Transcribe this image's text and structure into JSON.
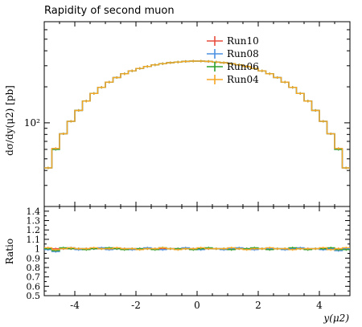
{
  "chart_data": [
    {
      "type": "line",
      "title": "Rapidity of second muon",
      "ylabel": "dσ/dy(μ2) [pb]",
      "yscale": "log",
      "ylim": [
        20,
        700
      ],
      "y_tick_labels": [
        "10²"
      ],
      "xlim": [
        -5,
        5
      ],
      "x_tick_labels": [
        "-4",
        "-2",
        "0",
        "2",
        "4"
      ],
      "legend": {
        "position": "top-center",
        "entries": [
          "Run10",
          "Run08",
          "Run06",
          "Run04"
        ]
      },
      "bin_edges": [
        -5.0,
        -4.75,
        -4.5,
        -4.25,
        -4.0,
        -3.75,
        -3.5,
        -3.25,
        -3.0,
        -2.75,
        -2.5,
        -2.25,
        -2.0,
        -1.75,
        -1.5,
        -1.25,
        -1.0,
        -0.75,
        -0.5,
        -0.25,
        0.0,
        0.25,
        0.5,
        0.75,
        1.0,
        1.25,
        1.5,
        1.75,
        2.0,
        2.25,
        2.5,
        2.75,
        3.0,
        3.25,
        3.5,
        3.75,
        4.0,
        4.25,
        4.5,
        4.75,
        5.0
      ],
      "series": [
        {
          "name": "Run10",
          "color": "#e74c3c",
          "values": [
            42,
            61,
            81,
            103,
            127,
            152,
            176,
            198,
            219,
            239,
            257,
            272,
            285,
            296,
            305,
            312,
            318,
            322,
            326,
            328,
            328,
            326,
            322,
            318,
            312,
            305,
            296,
            285,
            272,
            257,
            239,
            219,
            198,
            176,
            152,
            127,
            103,
            81,
            61,
            42
          ]
        },
        {
          "name": "Run08",
          "color": "#4a90e2",
          "values": [
            42,
            60,
            81,
            103,
            127,
            152,
            176,
            198,
            219,
            239,
            257,
            272,
            285,
            296,
            305,
            312,
            318,
            322,
            326,
            328,
            328,
            326,
            322,
            318,
            312,
            305,
            296,
            285,
            272,
            257,
            239,
            219,
            198,
            176,
            152,
            127,
            103,
            81,
            60,
            42
          ]
        },
        {
          "name": "Run06",
          "color": "#2ca02c",
          "values": [
            42,
            60,
            81,
            103,
            127,
            152,
            176,
            198,
            219,
            239,
            257,
            272,
            285,
            296,
            305,
            312,
            318,
            322,
            326,
            328,
            328,
            326,
            322,
            318,
            312,
            305,
            296,
            285,
            272,
            257,
            239,
            219,
            198,
            176,
            152,
            127,
            103,
            81,
            60,
            42
          ]
        },
        {
          "name": "Run04",
          "color": "#f5a623",
          "values": [
            42,
            61,
            81,
            103,
            127,
            152,
            176,
            198,
            219,
            239,
            257,
            272,
            285,
            296,
            305,
            312,
            318,
            322,
            326,
            328,
            328,
            326,
            322,
            318,
            312,
            305,
            296,
            285,
            272,
            257,
            239,
            219,
            198,
            176,
            152,
            127,
            103,
            81,
            61,
            42
          ]
        }
      ]
    },
    {
      "type": "line",
      "ylabel": "Ratio",
      "xlabel": "y(μ2)",
      "ylim": [
        0.5,
        1.45
      ],
      "y_tick_labels": [
        "0.5",
        "0.6",
        "0.7",
        "0.8",
        "0.9",
        "1",
        "1.1",
        "1.2",
        "1.3",
        "1.4"
      ],
      "xlim": [
        -5,
        5
      ],
      "x_tick_labels": [
        "-4",
        "-2",
        "0",
        "2",
        "4"
      ],
      "series": [
        {
          "name": "Run10",
          "color": "#e74c3c",
          "values": [
            1,
            1,
            1,
            1,
            1,
            1,
            1,
            1,
            1,
            1,
            1,
            1,
            1,
            1,
            1,
            1,
            1,
            1,
            1,
            1,
            1,
            1,
            1,
            1,
            1,
            1,
            1,
            1,
            1,
            1,
            1,
            1,
            1,
            1,
            1,
            1,
            1,
            1,
            1,
            1
          ]
        },
        {
          "name": "Run08",
          "color": "#4a90e2",
          "values": [
            0.99,
            0.97,
            1.0,
            1.01,
            0.99,
            1.0,
            1.0,
            1.01,
            0.99,
            1.0,
            1.0,
            0.99,
            1.0,
            1.01,
            1.0,
            0.99,
            1.0,
            1.0,
            1.01,
            1.0,
            0.99,
            1.0,
            1.0,
            0.99,
            1.0,
            1.01,
            1.0,
            0.99,
            1.0,
            1.0,
            1.0,
            0.99,
            1.0,
            1.01,
            1.0,
            1.0,
            0.99,
            1.0,
            0.98,
            1.0
          ]
        },
        {
          "name": "Run06",
          "color": "#2ca02c",
          "values": [
            1.0,
            0.98,
            1.01,
            1.0,
            1.0,
            0.99,
            1.0,
            1.0,
            1.01,
            1.0,
            0.99,
            1.0,
            1.0,
            1.0,
            0.99,
            1.01,
            1.0,
            1.0,
            1.0,
            0.99,
            1.0,
            1.01,
            1.0,
            1.0,
            0.99,
            1.0,
            1.0,
            1.01,
            1.0,
            0.99,
            1.0,
            1.0,
            1.01,
            1.0,
            0.99,
            1.0,
            1.0,
            1.01,
            0.99,
            0.99
          ]
        },
        {
          "name": "Run04",
          "color": "#f5a623",
          "values": [
            1.01,
            0.99,
            1.0,
            1.01,
            1.0,
            1.0,
            1.01,
            1.0,
            1.0,
            1.01,
            1.0,
            1.0,
            0.99,
            1.0,
            1.0,
            1.01,
            1.0,
            0.99,
            1.0,
            1.0,
            1.01,
            1.0,
            1.0,
            1.0,
            1.01,
            1.0,
            0.99,
            1.0,
            1.0,
            1.01,
            1.0,
            1.0,
            0.99,
            1.0,
            1.0,
            1.0,
            1.01,
            0.99,
            1.0,
            1.01
          ]
        }
      ]
    }
  ]
}
